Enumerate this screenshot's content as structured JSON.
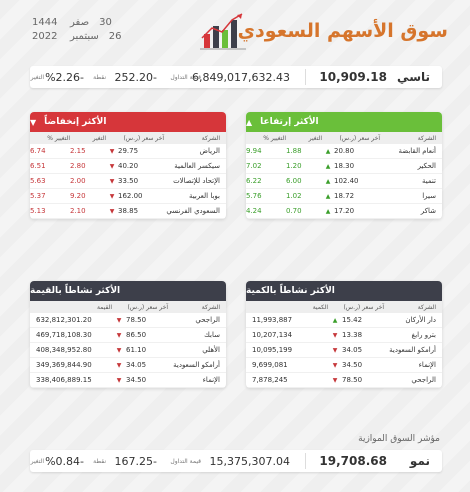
{
  "header": {
    "title": "سوق الأسهم السعودي",
    "hijri_day": "30",
    "hijri_month": "صفر",
    "hijri_year": "1444",
    "greg_day": "26",
    "greg_month": "سبتمبر",
    "greg_year": "2022"
  },
  "tasi": {
    "name": "تاسي",
    "value": "10,909.18",
    "volume_label": "قيمة التداول",
    "volume": "6,849,017,632.43",
    "points_label": "نقطة",
    "points": "252.20-",
    "change_label": "التغير",
    "change_pct": "%2.26-"
  },
  "rising": {
    "title": "الأكثر إرتفاعا",
    "cols": [
      "الشركة",
      "آخر سعر (ر.س)",
      "التغير",
      "التغيير %"
    ],
    "rows": [
      {
        "company": "أنعام القابضة",
        "price": "20.80",
        "change": "1.88",
        "pct": "9.94"
      },
      {
        "company": "الحكير",
        "price": "18.30",
        "change": "1.20",
        "pct": "7.02"
      },
      {
        "company": "تنمية",
        "price": "102.40",
        "change": "6.00",
        "pct": "6.22"
      },
      {
        "company": "سيرا",
        "price": "18.72",
        "change": "1.02",
        "pct": "5.76"
      },
      {
        "company": "شاكر",
        "price": "17.20",
        "change": "0.70",
        "pct": "4.24"
      }
    ]
  },
  "falling": {
    "title": "الأكثر إنخفاضاً",
    "cols": [
      "الشركة",
      "آخر سعر (ر.س)",
      "التغير",
      "التغيير %"
    ],
    "rows": [
      {
        "company": "الرياض",
        "price": "29.75",
        "change": "2.15",
        "pct": "6.74"
      },
      {
        "company": "سيكسر العالمية",
        "price": "40.20",
        "change": "2.80",
        "pct": "6.51"
      },
      {
        "company": "الإتحاد للإتصالات",
        "price": "33.50",
        "change": "2.00",
        "pct": "5.63"
      },
      {
        "company": "بوبا العربية",
        "price": "162.00",
        "change": "9.20",
        "pct": "5.37"
      },
      {
        "company": "السعودي الفرنسي",
        "price": "38.85",
        "change": "2.10",
        "pct": "5.13"
      }
    ]
  },
  "by_qty": {
    "title": "الأكثر نشاطاً بالكمية",
    "cols": [
      "الشركة",
      "آخر سعر (ر.س)",
      "الكمية"
    ],
    "rows": [
      {
        "company": "دار الأركان",
        "price": "15.42",
        "dir": "up",
        "qty": "11,993,887"
      },
      {
        "company": "بترو رابغ",
        "price": "13.38",
        "dir": "down",
        "qty": "10,207,134"
      },
      {
        "company": "أرامكو السعودية",
        "price": "34.05",
        "dir": "down",
        "qty": "10,095,199"
      },
      {
        "company": "الإنماء",
        "price": "34.50",
        "dir": "down",
        "qty": "9,699,081"
      },
      {
        "company": "الراجحي",
        "price": "78.50",
        "dir": "down",
        "qty": "7,878,245"
      }
    ]
  },
  "by_value": {
    "title": "الأكثر نشاطاً بالقيمة",
    "cols": [
      "الشركة",
      "آخر سعر (ر.س)",
      "القيمة"
    ],
    "rows": [
      {
        "company": "الراجحي",
        "price": "78.50",
        "dir": "down",
        "value": "632,812,301.20"
      },
      {
        "company": "سابك",
        "price": "86.50",
        "dir": "down",
        "value": "469,718,108.30"
      },
      {
        "company": "الأهلي",
        "price": "61.10",
        "dir": "down",
        "value": "408,348,952.80"
      },
      {
        "company": "أرامكو السعودية",
        "price": "34.05",
        "dir": "down",
        "value": "349,369,844.90"
      },
      {
        "company": "الإنماء",
        "price": "34.50",
        "dir": "down",
        "value": "338,406,889.15"
      }
    ]
  },
  "nomu": {
    "section_label": "مؤشر السوق الموازية",
    "name": "نمو",
    "value": "19,708.68",
    "volume_label": "قيمة التداول",
    "volume": "15,375,307.04",
    "points_label": "نقطة",
    "points": "167.25-",
    "change_label": "التغير",
    "change_pct": "%0.84-"
  },
  "colors": {
    "rising": "#6abf3a",
    "falling": "#d6363a",
    "active": "#3d3f4a",
    "title": "#d6752c"
  },
  "icons": {
    "logo": "bar-chart-logo",
    "up": "triangle-up",
    "down": "triangle-down"
  }
}
